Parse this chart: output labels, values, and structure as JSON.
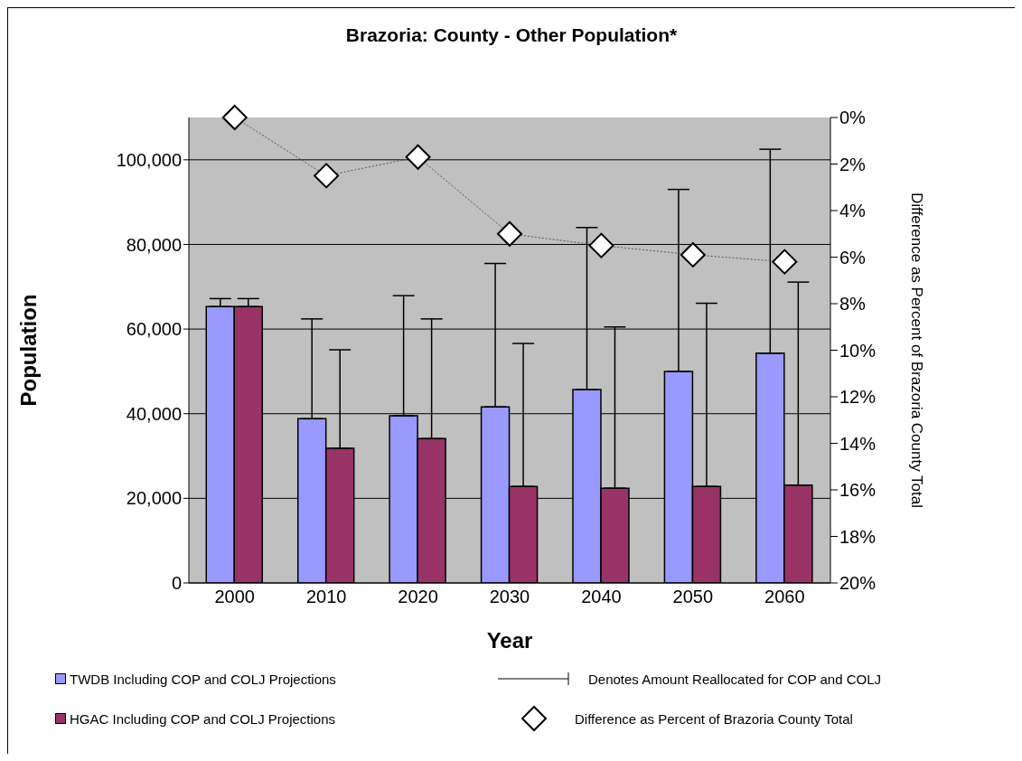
{
  "chart_data": {
    "type": "bar",
    "title": "Brazoria: County - Other Population*",
    "xlabel": "Year",
    "ylabel": "Population",
    "y2label": "Difference as Percent of Brazoria County Total",
    "categories": [
      "2000",
      "2010",
      "2020",
      "2030",
      "2040",
      "2050",
      "2060"
    ],
    "series": [
      {
        "name": "TWDB Including COP and COLJ Projections",
        "color": "#9999ff",
        "values": [
          65300,
          38800,
          39500,
          41600,
          45700,
          50000,
          54300
        ],
        "errors": [
          [
            65300,
            67200
          ],
          [
            38800,
            62400
          ],
          [
            39500,
            67900
          ],
          [
            41600,
            75500
          ],
          [
            45700,
            84000
          ],
          [
            50000,
            93000
          ],
          [
            54300,
            102500
          ]
        ]
      },
      {
        "name": "HGAC Including COP and COLJ Projections",
        "color": "#993366",
        "values": [
          65300,
          31800,
          34100,
          22800,
          22400,
          22800,
          23100
        ],
        "errors": [
          [
            65300,
            67200
          ],
          [
            31800,
            55100
          ],
          [
            34100,
            62400
          ],
          [
            22800,
            56600
          ],
          [
            22400,
            60500
          ],
          [
            22800,
            66100
          ],
          [
            23100,
            71100
          ]
        ]
      },
      {
        "name": "Difference as Percent of Brazoria County Total",
        "type": "line",
        "axis": "y2",
        "color": "#ffffff",
        "values": [
          0,
          2.5,
          1.7,
          5.0,
          5.5,
          5.9,
          6.2
        ]
      }
    ],
    "ylim": [
      0,
      110000
    ],
    "yticks": [
      {
        "value": 0,
        "label": "0"
      },
      {
        "value": 20000,
        "label": "20,000"
      },
      {
        "value": 40000,
        "label": "40,000"
      },
      {
        "value": 60000,
        "label": "60,000"
      },
      {
        "value": 80000,
        "label": "80,000"
      },
      {
        "value": 100000,
        "label": "100,000"
      }
    ],
    "y2lim": [
      20,
      0
    ],
    "y2ticks": [
      {
        "value": 0,
        "label": "0%"
      },
      {
        "value": 2,
        "label": "2%"
      },
      {
        "value": 4,
        "label": "4%"
      },
      {
        "value": 6,
        "label": "6%"
      },
      {
        "value": 8,
        "label": "8%"
      },
      {
        "value": 10,
        "label": "10%"
      },
      {
        "value": 12,
        "label": "12%"
      },
      {
        "value": 14,
        "label": "14%"
      },
      {
        "value": 16,
        "label": "16%"
      },
      {
        "value": 18,
        "label": "18%"
      },
      {
        "value": 20,
        "label": "20%"
      }
    ],
    "grid": "y",
    "legend": "bottom",
    "marker": "diamond",
    "line_style": "dotted",
    "annotations": [
      "Denotes Amount Reallocated for COP and COLJ"
    ]
  }
}
